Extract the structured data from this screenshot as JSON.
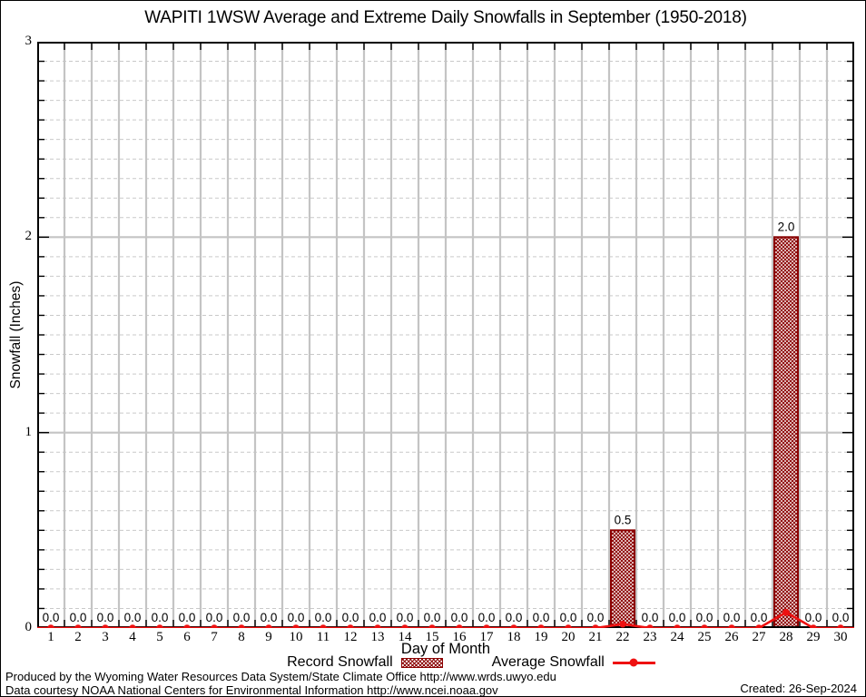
{
  "title": "WAPITI 1WSW Average and Extreme Daily Snowfalls in September (1950-2018)",
  "chart_data": {
    "type": "bar",
    "title": "WAPITI 1WSW Average and Extreme Daily Snowfalls in September (1950-2018)",
    "xlabel": "Day of Month",
    "ylabel": "Snowfall (Inches)",
    "categories": [
      1,
      2,
      3,
      4,
      5,
      6,
      7,
      8,
      9,
      10,
      11,
      12,
      13,
      14,
      15,
      16,
      17,
      18,
      19,
      20,
      21,
      22,
      23,
      24,
      25,
      26,
      27,
      28,
      29,
      30
    ],
    "series": [
      {
        "name": "Record Snowfall",
        "type": "bar",
        "values": [
          0.0,
          0.0,
          0.0,
          0.0,
          0.0,
          0.0,
          0.0,
          0.0,
          0.0,
          0.0,
          0.0,
          0.0,
          0.0,
          0.0,
          0.0,
          0.0,
          0.0,
          0.0,
          0.0,
          0.0,
          0.0,
          0.5,
          0.0,
          0.0,
          0.0,
          0.0,
          0.0,
          2.0,
          0.0,
          0.0
        ],
        "value_labels": [
          "0.0",
          "0.0",
          "0.0",
          "0.0",
          "0.0",
          "0.0",
          "0.0",
          "0.0",
          "0.0",
          "0.0",
          "0.0",
          "0.0",
          "0.0",
          "0.0",
          "0.0",
          "0.0",
          "0.0",
          "0.0",
          "0.0",
          "0.0",
          "0.0",
          "0.5",
          "0.0",
          "0.0",
          "0.0",
          "0.0",
          "0.0",
          "2.0",
          "0.0",
          "0.0"
        ]
      },
      {
        "name": "Average Snowfall",
        "type": "line",
        "values": [
          0,
          0,
          0,
          0,
          0,
          0,
          0,
          0,
          0,
          0,
          0,
          0,
          0,
          0,
          0,
          0,
          0,
          0,
          0,
          0,
          0,
          0.02,
          0,
          0,
          0,
          0,
          0,
          0.08,
          0,
          0
        ]
      }
    ],
    "ylim": [
      0,
      3
    ],
    "ytick_major": [
      0,
      1,
      2,
      3
    ],
    "ytick_minor_step": 0.1,
    "grid": "on",
    "legend_position": "bottom"
  },
  "colors": {
    "bar_dark_red": "#8b0000",
    "line_red": "#ee1111",
    "grid_major": "#c4c4c4",
    "grid_minor": "#c9c9c9",
    "axis_black": "#000000"
  },
  "footer": {
    "produced": "Produced by the Wyoming Water Resources Data System/State Climate Office http://www.wrds.uwyo.edu",
    "courtesy": "Data courtesy NOAA National Centers for Environmental Information http://www.ncei.noaa.gov",
    "created": "Created: 26-Sep-2024"
  }
}
